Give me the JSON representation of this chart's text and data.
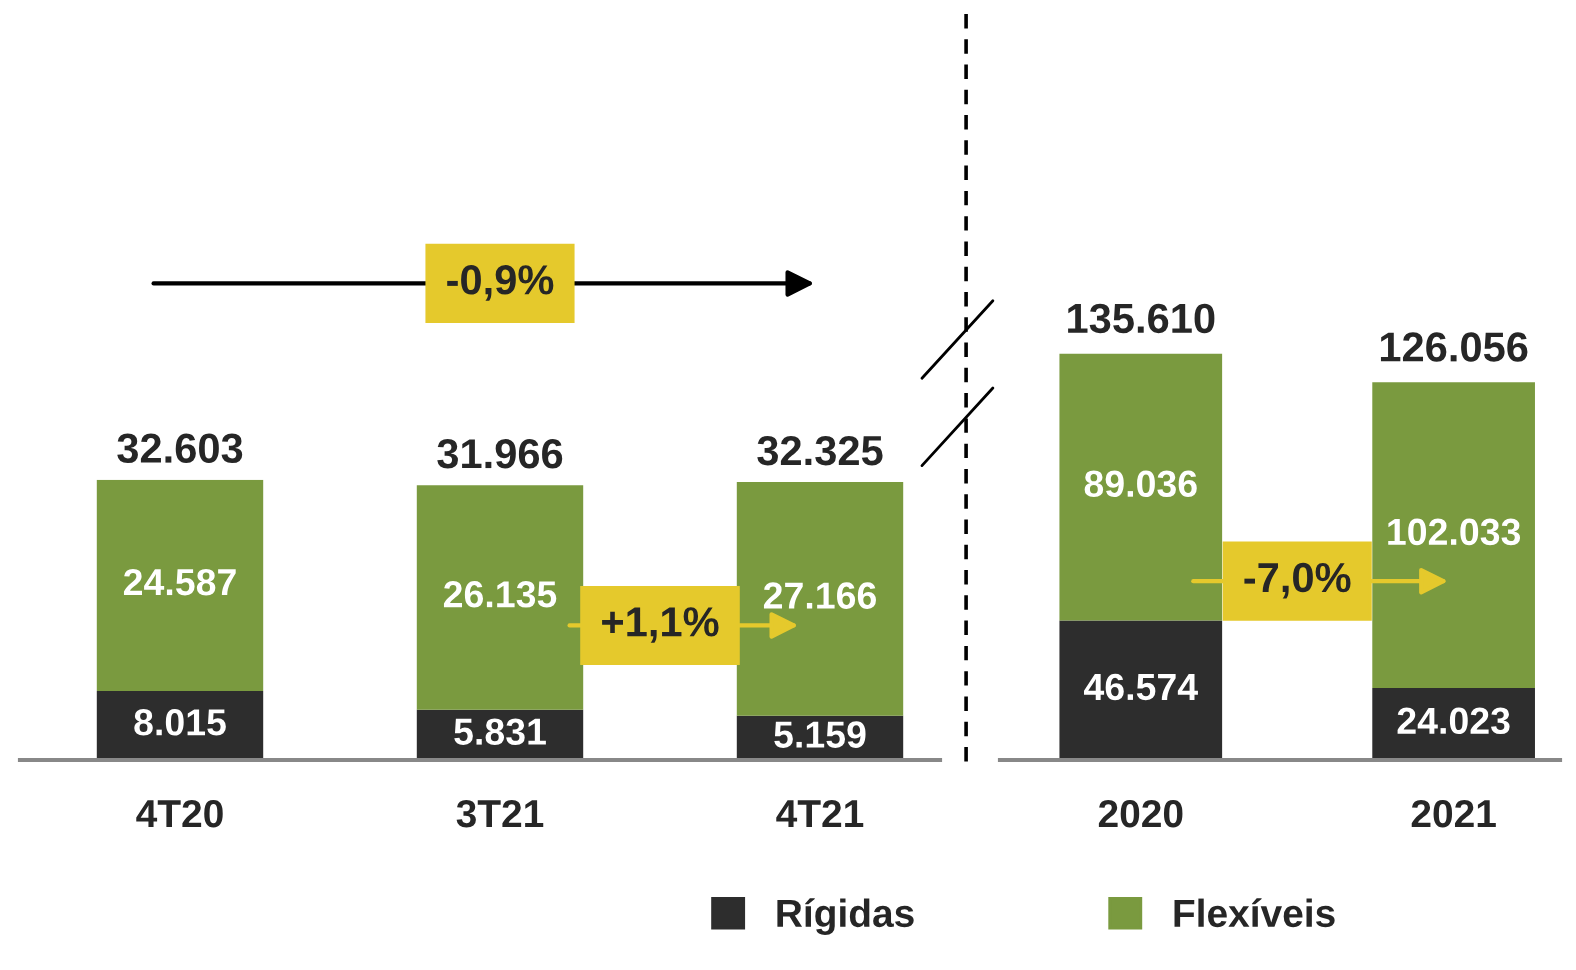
{
  "chart_data": [
    {
      "type": "bar",
      "stacked": true,
      "categories": [
        "4T20",
        "3T21",
        "4T21"
      ],
      "series": [
        {
          "name": "Rígidas",
          "color": "#2d2d2d",
          "values": [
            8015,
            5831,
            5159
          ],
          "value_labels": [
            "8.015",
            "5.831",
            "5.159"
          ]
        },
        {
          "name": "Flexíveis",
          "color": "#7a9a3f",
          "values": [
            24587,
            26135,
            27166
          ],
          "value_labels": [
            "24.587",
            "26.135",
            "27.166"
          ]
        }
      ],
      "totals": [
        "32.603",
        "31.966",
        "32.325"
      ],
      "annotations": [
        "-0,9%",
        "+1,1%"
      ],
      "legend": "bottom"
    },
    {
      "type": "bar",
      "stacked": true,
      "categories": [
        "2020",
        "2021"
      ],
      "series": [
        {
          "name": "Rígidas",
          "color": "#2d2d2d",
          "values": [
            46574,
            24023
          ],
          "value_labels": [
            "46.574",
            "24.023"
          ]
        },
        {
          "name": "Flexíveis",
          "color": "#7a9a3f",
          "values": [
            89036,
            102033
          ],
          "value_labels": [
            "89.036",
            "102.033"
          ]
        }
      ],
      "totals": [
        "135.610",
        "126.056"
      ],
      "annotations": [
        "-7,0%"
      ]
    }
  ]
}
